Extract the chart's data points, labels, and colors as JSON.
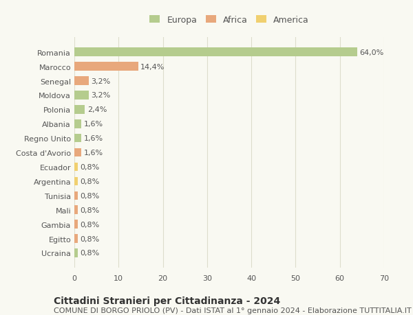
{
  "countries": [
    "Romania",
    "Marocco",
    "Senegal",
    "Moldova",
    "Polonia",
    "Albania",
    "Regno Unito",
    "Costa d'Avorio",
    "Ecuador",
    "Argentina",
    "Tunisia",
    "Mali",
    "Gambia",
    "Egitto",
    "Ucraina"
  ],
  "values": [
    64.0,
    14.4,
    3.2,
    3.2,
    2.4,
    1.6,
    1.6,
    1.6,
    0.8,
    0.8,
    0.8,
    0.8,
    0.8,
    0.8,
    0.8
  ],
  "labels": [
    "64,0%",
    "14,4%",
    "3,2%",
    "3,2%",
    "2,4%",
    "1,6%",
    "1,6%",
    "1,6%",
    "0,8%",
    "0,8%",
    "0,8%",
    "0,8%",
    "0,8%",
    "0,8%",
    "0,8%"
  ],
  "continents": [
    "Europa",
    "Africa",
    "Africa",
    "Europa",
    "Europa",
    "Europa",
    "Europa",
    "Africa",
    "America",
    "America",
    "Africa",
    "Africa",
    "Africa",
    "Africa",
    "Europa"
  ],
  "colors": {
    "Europa": "#b5cc8e",
    "Africa": "#e8a87c",
    "America": "#f0d070"
  },
  "legend_colors": {
    "Europa": "#b5cc8e",
    "Africa": "#e8a87c",
    "America": "#f0d070"
  },
  "title": "Cittadini Stranieri per Cittadinanza - 2024",
  "subtitle": "COMUNE DI BORGO PRIOLO (PV) - Dati ISTAT al 1° gennaio 2024 - Elaborazione TUTTITALIA.IT",
  "xlim": [
    0,
    70
  ],
  "xticks": [
    0,
    10,
    20,
    30,
    40,
    50,
    60,
    70
  ],
  "background_color": "#f9f9f2",
  "grid_color": "#ddddcc",
  "bar_height": 0.6,
  "title_fontsize": 10,
  "subtitle_fontsize": 8,
  "label_fontsize": 8,
  "tick_fontsize": 8,
  "legend_fontsize": 9
}
